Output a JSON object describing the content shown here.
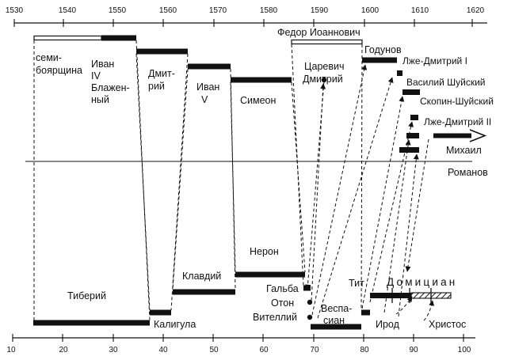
{
  "top_axis": {
    "ticks": [
      "1530",
      "1540",
      "1550",
      "1560",
      "1570",
      "1580",
      "1590",
      "1600",
      "1610",
      "1620"
    ]
  },
  "bottom_axis": {
    "ticks": [
      "10",
      "20",
      "30",
      "40",
      "50",
      "60",
      "70",
      "80",
      "90",
      "100"
    ]
  },
  "top_labels": {
    "semiboyarshchina": [
      "семи-",
      "боярщина"
    ],
    "ivan_iv": [
      "Иван",
      "IV",
      "Блажен-",
      "ный"
    ],
    "dmitry": [
      "Дмит-",
      "рий"
    ],
    "ivan_v": [
      "Иван",
      "V"
    ],
    "simeon": [
      "Симеон"
    ],
    "fyodor": "Федор Иоаннович",
    "tsarevich": [
      "Царевич",
      "Дмитрий"
    ],
    "godunov": "Годунов",
    "false_dmitry_1": "Лже-Дмитрий I",
    "shuisky": "Василий Шуйский",
    "skopin": "Скопин-Шуйский",
    "false_dmitry_2": "Лже-Дмитрий II",
    "mikhail": "Михаил",
    "romanov": "Романов"
  },
  "bottom_labels": {
    "tiberius": "Тиберий",
    "caligula": "Калигула",
    "claudius": "Клавдий",
    "nero": "Нерон",
    "galba": "Гальба",
    "otho": "Отон",
    "vitellius": "Вителлий",
    "vespasian": [
      "Веспа-",
      "сиан"
    ],
    "titus": "Тит",
    "domitian": "Домициан",
    "herod": "Ирод",
    "christ": "Христос"
  },
  "colors": {
    "ink": "#111111",
    "background": "#ffffff"
  }
}
